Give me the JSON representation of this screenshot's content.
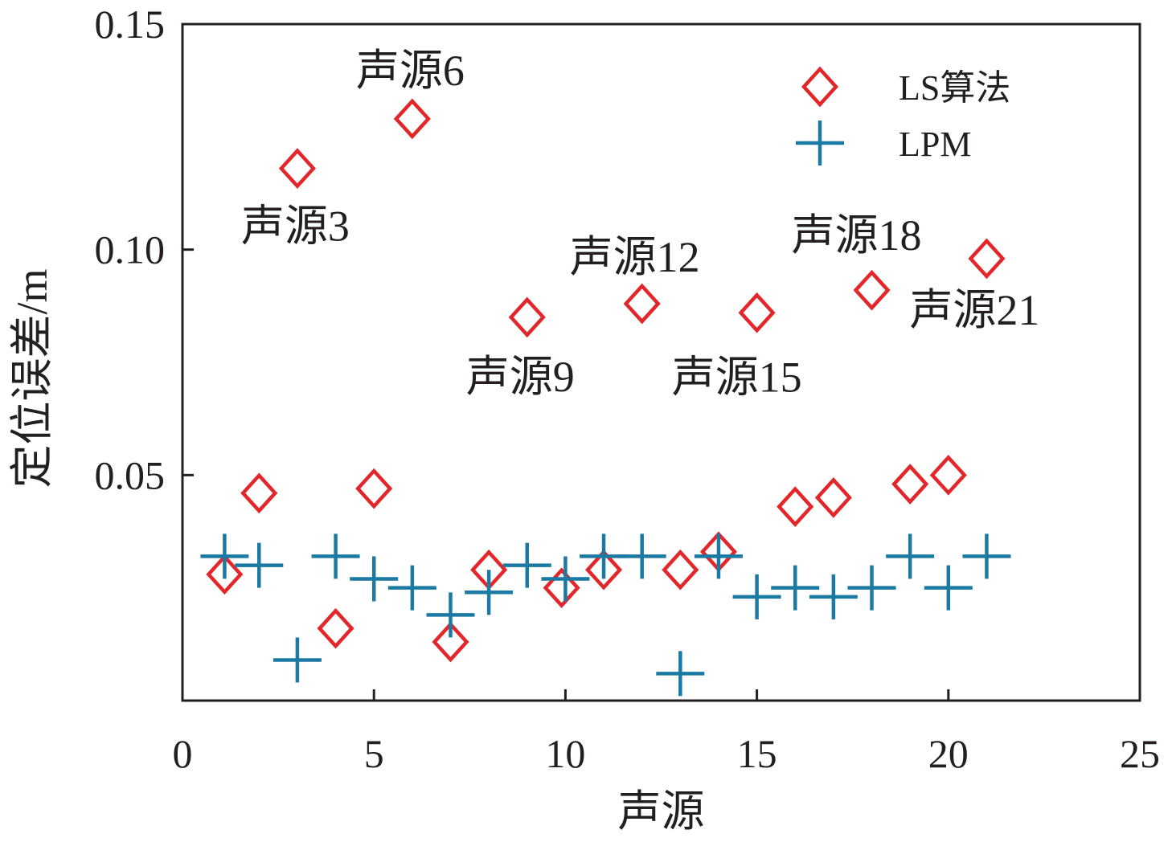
{
  "chart_data": {
    "type": "scatter",
    "xlabel": "声源",
    "ylabel": "定位误差/m",
    "xlim": [
      0,
      25
    ],
    "ylim": [
      0,
      0.15
    ],
    "xticks": [
      "0",
      "5",
      "10",
      "15",
      "20",
      "25"
    ],
    "yticks": [
      "0.05",
      "0.10",
      "0.15"
    ],
    "grid": false,
    "legend_position": "top-right",
    "series": [
      {
        "name": "LS算法",
        "marker": "diamond",
        "color": "#e3262a",
        "x": [
          1.1,
          2.0,
          3.0,
          4.0,
          5.0,
          6.0,
          7.0,
          8.0,
          9.0,
          9.9,
          11.0,
          12.0,
          13.0,
          14.0,
          15.0,
          16.0,
          17.0,
          18.0,
          19.0,
          20.0,
          21.0
        ],
        "y": [
          0.028,
          0.046,
          0.118,
          0.016,
          0.047,
          0.129,
          0.013,
          0.029,
          0.085,
          0.025,
          0.029,
          0.088,
          0.029,
          0.033,
          0.086,
          0.043,
          0.045,
          0.091,
          0.048,
          0.05,
          0.098
        ]
      },
      {
        "name": "LPM",
        "marker": "plus",
        "color": "#1b7aa3",
        "x": [
          1.1,
          2.0,
          3.0,
          4.0,
          5.0,
          6.0,
          7.0,
          8.0,
          9.0,
          10.0,
          11.0,
          12.0,
          13.0,
          14.0,
          15.0,
          16.0,
          17.0,
          18.0,
          19.0,
          20.0,
          21.0
        ],
        "y": [
          0.032,
          0.03,
          0.009,
          0.032,
          0.027,
          0.025,
          0.019,
          0.024,
          0.03,
          0.027,
          0.032,
          0.032,
          0.006,
          0.032,
          0.023,
          0.025,
          0.023,
          0.025,
          0.032,
          0.025,
          0.032
        ]
      }
    ],
    "annotations": [
      {
        "text": "声源3",
        "x": 3.0,
        "y": 0.118
      },
      {
        "text": "声源6",
        "x": 6.0,
        "y": 0.129
      },
      {
        "text": "声源9",
        "x": 9.0,
        "y": 0.085
      },
      {
        "text": "声源12",
        "x": 12.0,
        "y": 0.088
      },
      {
        "text": "声源15",
        "x": 15.0,
        "y": 0.086
      },
      {
        "text": "声源18",
        "x": 18.0,
        "y": 0.091
      },
      {
        "text": "声源21",
        "x": 21.0,
        "y": 0.098
      }
    ]
  }
}
